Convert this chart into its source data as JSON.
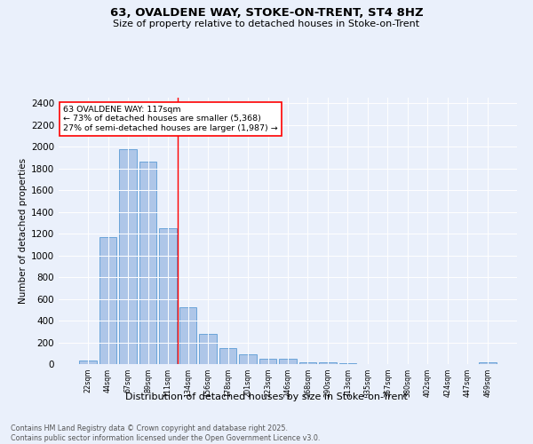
{
  "title1": "63, OVALDENE WAY, STOKE-ON-TRENT, ST4 8HZ",
  "title2": "Size of property relative to detached houses in Stoke-on-Trent",
  "xlabel": "Distribution of detached houses by size in Stoke-on-Trent",
  "ylabel": "Number of detached properties",
  "bar_labels": [
    "22sqm",
    "44sqm",
    "67sqm",
    "89sqm",
    "111sqm",
    "134sqm",
    "156sqm",
    "178sqm",
    "201sqm",
    "223sqm",
    "246sqm",
    "268sqm",
    "290sqm",
    "313sqm",
    "335sqm",
    "357sqm",
    "380sqm",
    "402sqm",
    "424sqm",
    "447sqm",
    "469sqm"
  ],
  "bar_values": [
    30,
    1170,
    1980,
    1860,
    1250,
    520,
    275,
    150,
    90,
    50,
    45,
    20,
    15,
    5,
    3,
    2,
    2,
    1,
    1,
    1,
    15
  ],
  "bar_color": "#aec6e8",
  "bar_edge_color": "#5b9bd5",
  "annotation_text": "63 OVALDENE WAY: 117sqm\n← 73% of detached houses are smaller (5,368)\n27% of semi-detached houses are larger (1,987) →",
  "vline_x": 4.5,
  "vline_color": "red",
  "annotation_box_color": "white",
  "annotation_box_edge": "red",
  "footer1": "Contains HM Land Registry data © Crown copyright and database right 2025.",
  "footer2": "Contains public sector information licensed under the Open Government Licence v3.0.",
  "ylim": [
    0,
    2450
  ],
  "yticks": [
    0,
    200,
    400,
    600,
    800,
    1000,
    1200,
    1400,
    1600,
    1800,
    2000,
    2200,
    2400
  ],
  "bg_color": "#eaf0fb",
  "plot_bg_color": "#eaf0fb"
}
